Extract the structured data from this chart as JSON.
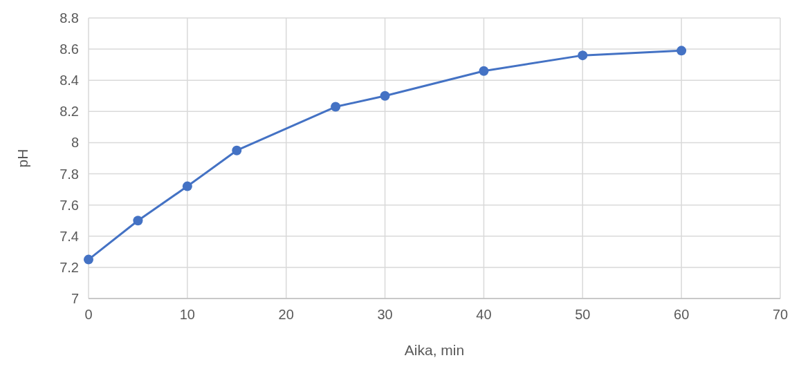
{
  "chart_data": {
    "type": "line",
    "xlabel": "Aika, min",
    "ylabel": "pH",
    "x": [
      0,
      5,
      10,
      15,
      25,
      30,
      40,
      50,
      60
    ],
    "series": [
      {
        "color": "#4472c4",
        "values": [
          7.25,
          7.5,
          7.72,
          7.95,
          8.23,
          8.3,
          8.46,
          8.56,
          8.59
        ]
      }
    ],
    "xlim": [
      0,
      70
    ],
    "xticks": [
      0,
      10,
      20,
      30,
      40,
      50,
      60,
      70
    ],
    "ylim": [
      7,
      8.8
    ],
    "yticks": [
      7,
      7.2,
      7.4,
      7.6,
      7.8,
      8,
      8.2,
      8.4,
      8.6,
      8.8
    ],
    "grid": true,
    "marker": "circle",
    "line_style": "solid"
  }
}
